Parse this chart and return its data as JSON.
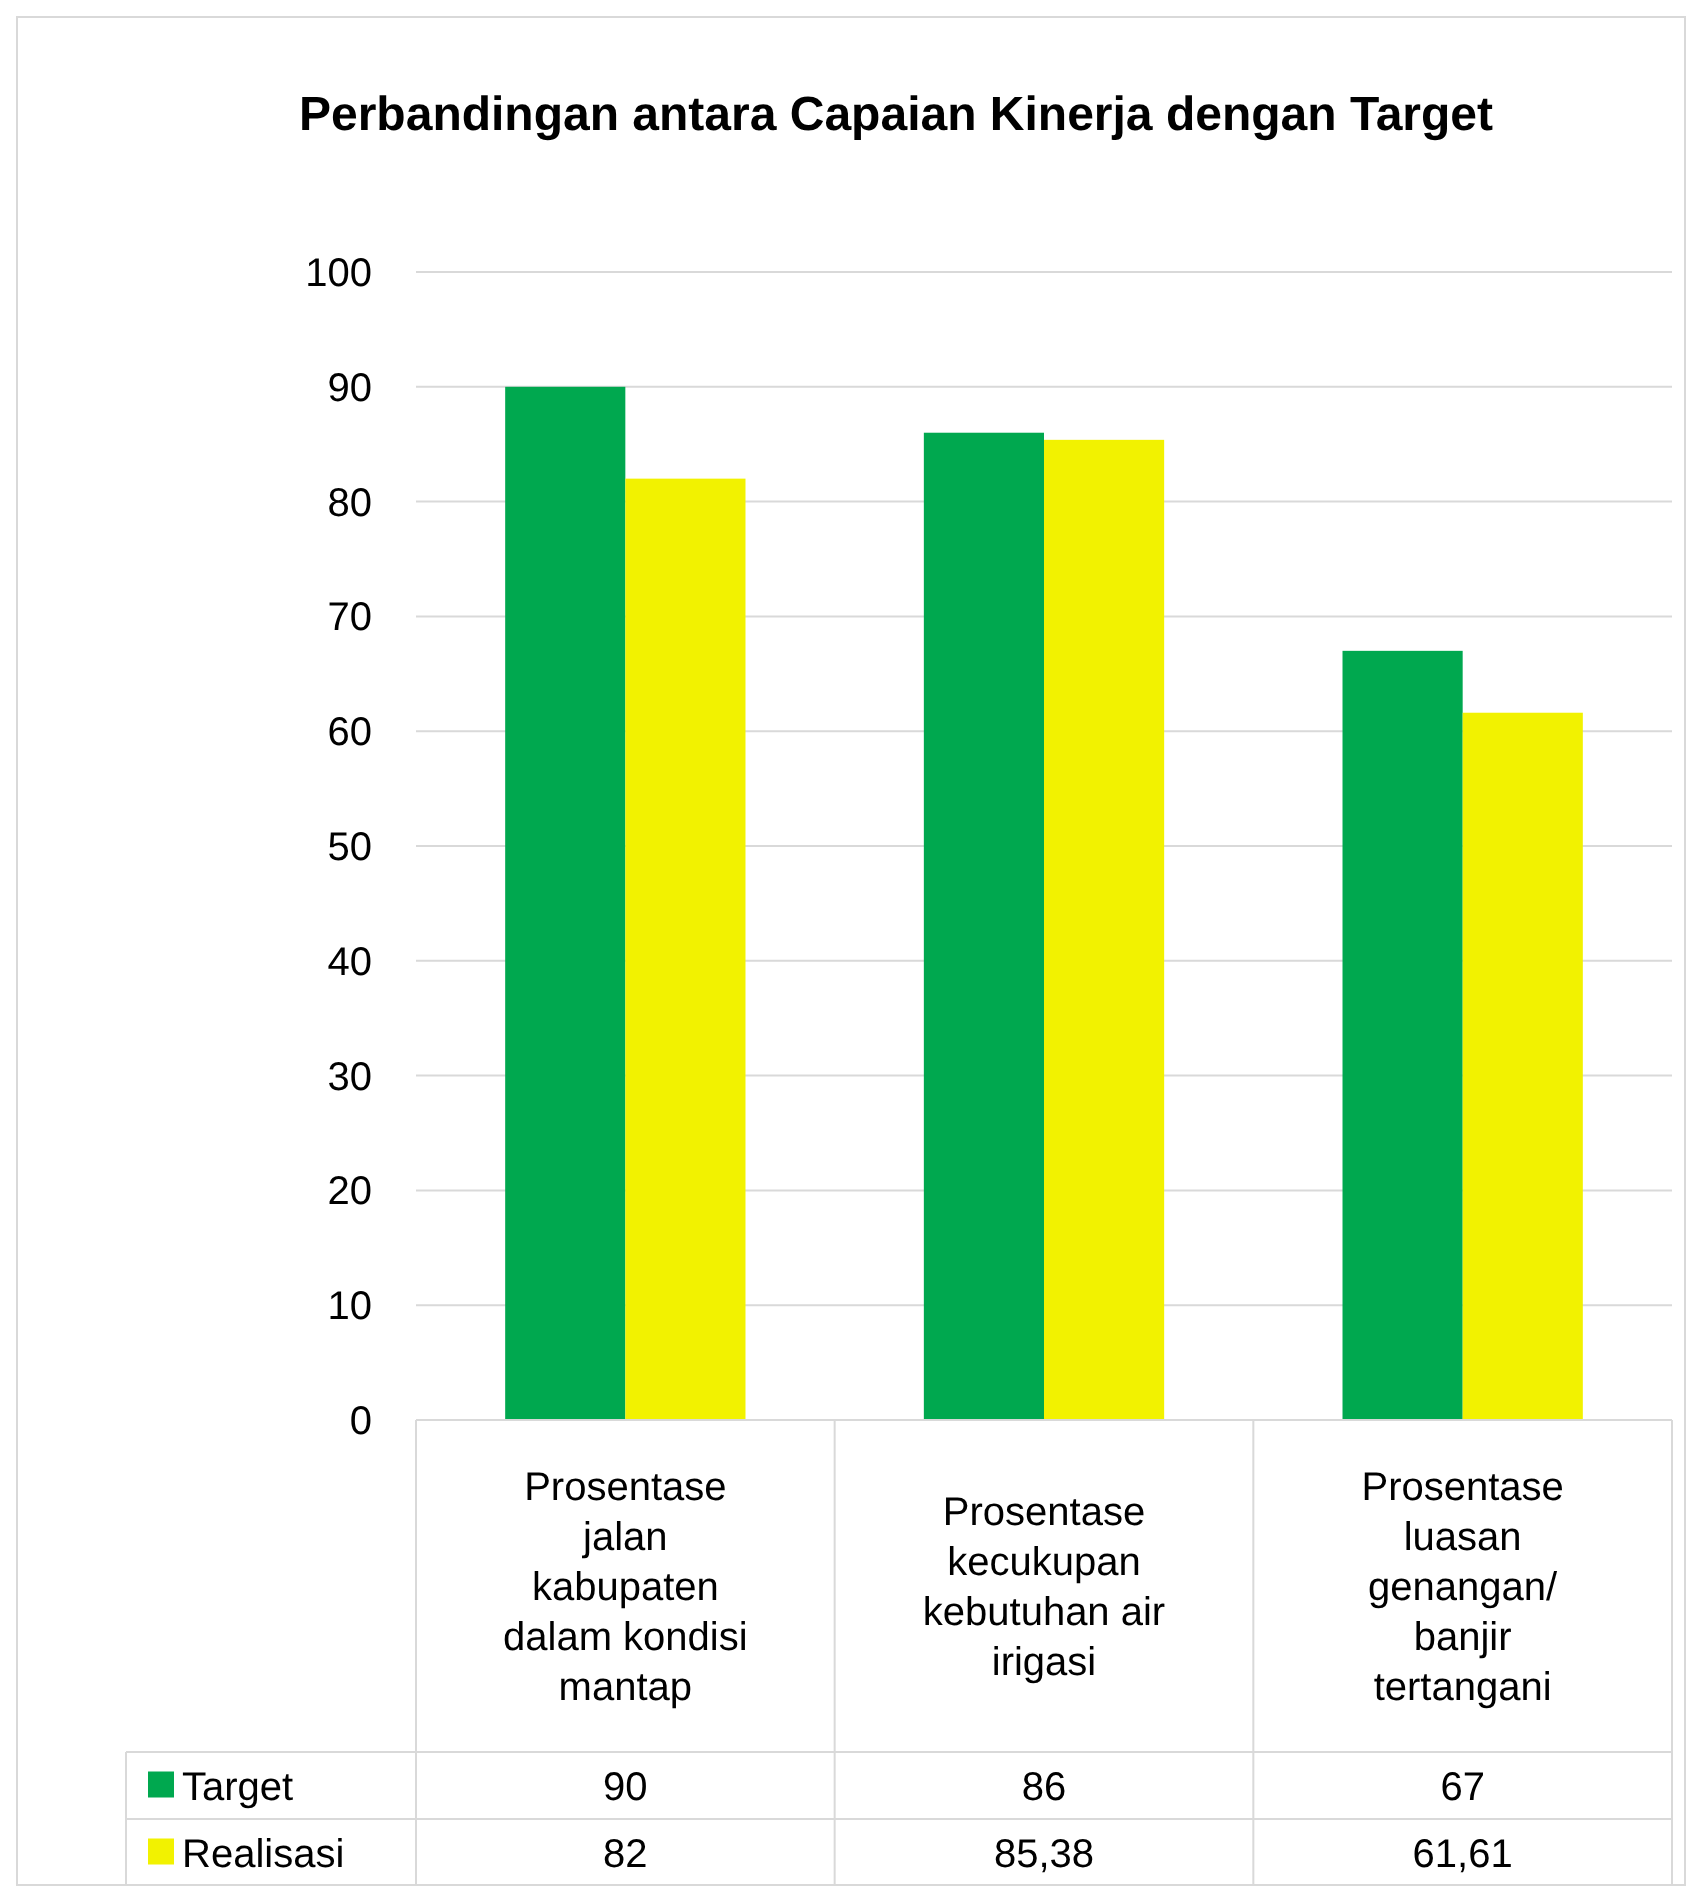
{
  "chart_data": {
    "type": "bar",
    "title": "Perbandingan antara Capaian Kinerja dengan Target",
    "categories": [
      "Prosentase jalan kabupaten dalam kondisi mantap",
      "Prosentase kecukupan kebutuhan air irigasi",
      "Prosentase luasan genangan/ banjir tertangani"
    ],
    "series": [
      {
        "name": "Target",
        "color": "#00a84f",
        "values": [
          90,
          86,
          67
        ],
        "value_labels": [
          "90",
          "86",
          "67"
        ]
      },
      {
        "name": "Realisasi",
        "color": "#f2f200",
        "values": [
          82,
          85.38,
          61.61
        ],
        "value_labels": [
          "82",
          "85,38",
          "61,61"
        ]
      }
    ],
    "ylim": [
      0,
      100
    ],
    "yticks": [
      0,
      10,
      20,
      30,
      40,
      50,
      60,
      70,
      80,
      90,
      100
    ],
    "grid": "y",
    "legend": "bottom"
  }
}
